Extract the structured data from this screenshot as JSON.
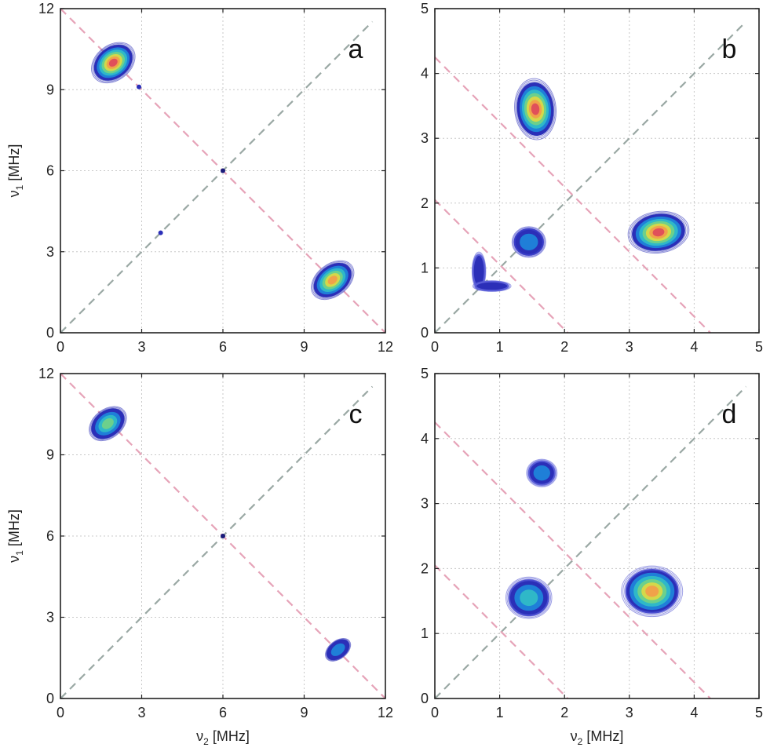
{
  "chart_data": [
    {
      "type": "contour",
      "panel_label": "a",
      "xlabel_symbol": "ν",
      "xlabel_sub": "2",
      "xlabel_unit": "[MHz]",
      "ylabel_symbol": "ν",
      "ylabel_sub": "1",
      "ylabel_unit": "[MHz]",
      "xlim": [
        0,
        12
      ],
      "ylim": [
        0,
        12
      ],
      "xticks": [
        0,
        3,
        6,
        9,
        12
      ],
      "yticks": [
        0,
        3,
        6,
        9,
        12
      ],
      "show_xlabel": false,
      "show_ylabel": true,
      "grid": true,
      "diagonal": {
        "color": "#9aa8a4"
      },
      "antidiagonals": [
        {
          "sum": 12,
          "color": "#e6a3b8"
        }
      ],
      "peaks": [
        {
          "x": 1.95,
          "y": 10.0,
          "rx": 0.75,
          "ry": 0.55,
          "rot": 38,
          "intensity": 1.0,
          "color": "#2b2fb8"
        },
        {
          "x": 10.05,
          "y": 1.95,
          "rx": 0.75,
          "ry": 0.5,
          "rot": 38,
          "intensity": 0.9,
          "color": "#2b2fb8"
        },
        {
          "x": 6.0,
          "y": 6.0,
          "rx": 0.08,
          "ry": 0.08,
          "rot": 0,
          "intensity": 0.2,
          "color": "#1a1a7a"
        },
        {
          "x": 3.7,
          "y": 3.7,
          "rx": 0.06,
          "ry": 0.06,
          "rot": 0,
          "intensity": 0.1,
          "color": "#2b2fb8"
        },
        {
          "x": 2.9,
          "y": 9.1,
          "rx": 0.06,
          "ry": 0.06,
          "rot": 0,
          "intensity": 0.1,
          "color": "#2b2fb8"
        }
      ]
    },
    {
      "type": "contour",
      "panel_label": "b",
      "xlabel_symbol": "ν",
      "xlabel_sub": "2",
      "xlabel_unit": "[MHz]",
      "ylabel_symbol": "ν",
      "ylabel_sub": "1",
      "ylabel_unit": "[MHz]",
      "xlim": [
        0,
        5
      ],
      "ylim": [
        0,
        5
      ],
      "xticks": [
        0,
        1,
        2,
        3,
        4,
        5
      ],
      "yticks": [
        0,
        1,
        2,
        3,
        4,
        5
      ],
      "show_xlabel": false,
      "show_ylabel": false,
      "grid": true,
      "diagonal": {
        "color": "#9aa8a4"
      },
      "antidiagonals": [
        {
          "sum": 2.05,
          "color": "#e6a3b8"
        },
        {
          "sum": 4.25,
          "color": "#e6a3b8"
        }
      ],
      "peaks": [
        {
          "x": 1.55,
          "y": 3.45,
          "rx": 0.27,
          "ry": 0.4,
          "rot": 5,
          "intensity": 1.0,
          "color": "#2b2fb8"
        },
        {
          "x": 3.45,
          "y": 1.55,
          "rx": 0.4,
          "ry": 0.27,
          "rot": 8,
          "intensity": 0.95,
          "color": "#2b2fb8"
        },
        {
          "x": 1.45,
          "y": 1.4,
          "rx": 0.22,
          "ry": 0.2,
          "rot": 0,
          "intensity": 0.35,
          "color": "#3a3ec8"
        },
        {
          "x": 0.68,
          "y": 0.95,
          "rx": 0.09,
          "ry": 0.25,
          "rot": 0,
          "intensity": 0.2,
          "color": "#5a5ed8"
        },
        {
          "x": 0.88,
          "y": 0.72,
          "rx": 0.25,
          "ry": 0.07,
          "rot": 0,
          "intensity": 0.2,
          "color": "#5a5ed8"
        }
      ]
    },
    {
      "type": "contour",
      "panel_label": "c",
      "xlabel_symbol": "ν",
      "xlabel_sub": "2",
      "xlabel_unit": "[MHz]",
      "ylabel_symbol": "ν",
      "ylabel_sub": "1",
      "ylabel_unit": "[MHz]",
      "xlim": [
        0,
        12
      ],
      "ylim": [
        0,
        12
      ],
      "xticks": [
        0,
        3,
        6,
        9,
        12
      ],
      "yticks": [
        0,
        3,
        6,
        9,
        12
      ],
      "show_xlabel": true,
      "show_ylabel": true,
      "grid": true,
      "diagonal": {
        "color": "#9aa8a4"
      },
      "antidiagonals": [
        {
          "sum": 12,
          "color": "#e6a3b8"
        }
      ],
      "peaks": [
        {
          "x": 1.75,
          "y": 10.15,
          "rx": 0.65,
          "ry": 0.45,
          "rot": 38,
          "intensity": 0.55,
          "color": "#2b2fb8"
        },
        {
          "x": 10.25,
          "y": 1.8,
          "rx": 0.45,
          "ry": 0.28,
          "rot": 38,
          "intensity": 0.35,
          "color": "#2b2fb8"
        },
        {
          "x": 6.0,
          "y": 6.0,
          "rx": 0.08,
          "ry": 0.08,
          "rot": 0,
          "intensity": 0.2,
          "color": "#1a1a7a"
        }
      ]
    },
    {
      "type": "contour",
      "panel_label": "d",
      "xlabel_symbol": "ν",
      "xlabel_sub": "2",
      "xlabel_unit": "[MHz]",
      "ylabel_symbol": "ν",
      "ylabel_sub": "1",
      "ylabel_unit": "[MHz]",
      "xlim": [
        0,
        5
      ],
      "ylim": [
        0,
        5
      ],
      "xticks": [
        0,
        1,
        2,
        3,
        4,
        5
      ],
      "yticks": [
        0,
        1,
        2,
        3,
        4,
        5
      ],
      "show_xlabel": true,
      "show_ylabel": false,
      "grid": true,
      "diagonal": {
        "color": "#9aa8a4"
      },
      "antidiagonals": [
        {
          "sum": 2.05,
          "color": "#e6a3b8"
        },
        {
          "sum": 4.25,
          "color": "#e6a3b8"
        }
      ],
      "peaks": [
        {
          "x": 1.65,
          "y": 3.47,
          "rx": 0.2,
          "ry": 0.18,
          "rot": 0,
          "intensity": 0.3,
          "color": "#5a5ed8"
        },
        {
          "x": 1.45,
          "y": 1.55,
          "rx": 0.3,
          "ry": 0.27,
          "rot": 0,
          "intensity": 0.4,
          "color": "#4a4ed0"
        },
        {
          "x": 3.35,
          "y": 1.65,
          "rx": 0.4,
          "ry": 0.33,
          "rot": 0,
          "intensity": 0.9,
          "color": "#4a4ed0"
        }
      ]
    }
  ]
}
